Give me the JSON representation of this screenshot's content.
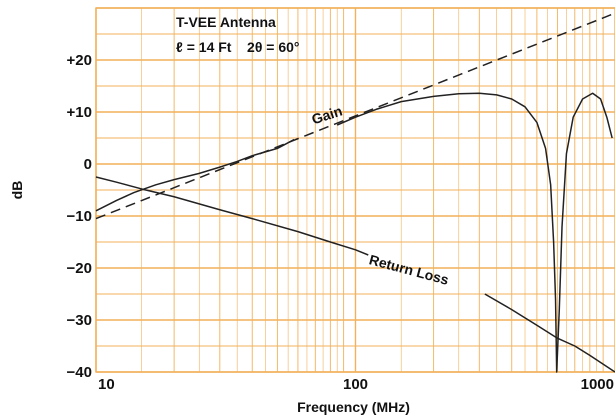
{
  "chart_data": {
    "type": "line",
    "title": "T-VEE Antenna",
    "subtitle": "ℓ = 14 Ft    2θ = 60°",
    "xlabel": "Frequency (MHz)",
    "ylabel": "dB",
    "x_scale": "log",
    "xlim": [
      10,
      1000
    ],
    "ylim": [
      -40,
      30
    ],
    "x_ticks": [
      10,
      100,
      1000
    ],
    "x_tick_labels": [
      "10",
      "100",
      "1000"
    ],
    "y_ticks": [
      20,
      10,
      0,
      -10,
      -20,
      -30,
      -40
    ],
    "y_tick_labels": [
      "+20",
      "+10",
      "0",
      "−10",
      "−20",
      "−30",
      "−40"
    ],
    "grid": true,
    "grid_color": "#f2b15a",
    "curve_color": "#222222",
    "series": [
      {
        "name": "Gain",
        "style": "solid",
        "segments": [
          [
            [
              10,
              -9
            ],
            [
              12,
              -7
            ],
            [
              14,
              -5.5
            ],
            [
              17,
              -4
            ],
            [
              20,
              -3
            ],
            [
              25,
              -1.8
            ],
            [
              30,
              -0.6
            ],
            [
              35,
              0.5
            ],
            [
              40,
              1.6
            ],
            [
              50,
              3
            ],
            [
              58,
              4.7
            ]
          ],
          [
            [
              85,
              7.5
            ],
            [
              100,
              9
            ],
            [
              120,
              10.5
            ],
            [
              150,
              12
            ],
            [
              200,
              13
            ],
            [
              250,
              13.5
            ],
            [
              300,
              13.6
            ],
            [
              350,
              13.3
            ],
            [
              400,
              12.5
            ],
            [
              450,
              11
            ],
            [
              500,
              8
            ],
            [
              540,
              3
            ],
            [
              565,
              -4
            ],
            [
              580,
              -15
            ],
            [
              590,
              -26
            ],
            [
              596,
              -40
            ],
            [
              610,
              -28
            ],
            [
              625,
              -12
            ],
            [
              650,
              2
            ],
            [
              690,
              9
            ],
            [
              750,
              12.5
            ],
            [
              820,
              13.6
            ],
            [
              880,
              12.5
            ],
            [
              930,
              9
            ],
            [
              975,
              5
            ]
          ]
        ]
      },
      {
        "name": "Gain asymptote",
        "style": "dashed",
        "points": [
          [
            10,
            -10.5
          ],
          [
            1000,
            29
          ]
        ]
      },
      {
        "name": "Return Loss",
        "style": "solid",
        "segments": [
          [
            [
              10,
              -2.5
            ],
            [
              12,
              -3.5
            ],
            [
              15,
              -4.8
            ],
            [
              20,
              -6.3
            ],
            [
              30,
              -8.8
            ],
            [
              40,
              -10.5
            ],
            [
              60,
              -13
            ],
            [
              80,
              -15
            ],
            [
              100,
              -16.5
            ],
            [
              112,
              -17.5
            ]
          ],
          [
            [
              315,
              -25
            ],
            [
              400,
              -28
            ],
            [
              500,
              -31
            ],
            [
              600,
              -33.5
            ],
            [
              700,
              -35
            ],
            [
              800,
              -36.8
            ],
            [
              1000,
              -40
            ]
          ]
        ]
      }
    ],
    "annotations": [
      {
        "text": "Gain",
        "x": 69,
        "y": 7.6,
        "rotate": -18
      },
      {
        "text": "Return Loss",
        "x": 112,
        "y": -19.2,
        "rotate": 15
      }
    ]
  }
}
